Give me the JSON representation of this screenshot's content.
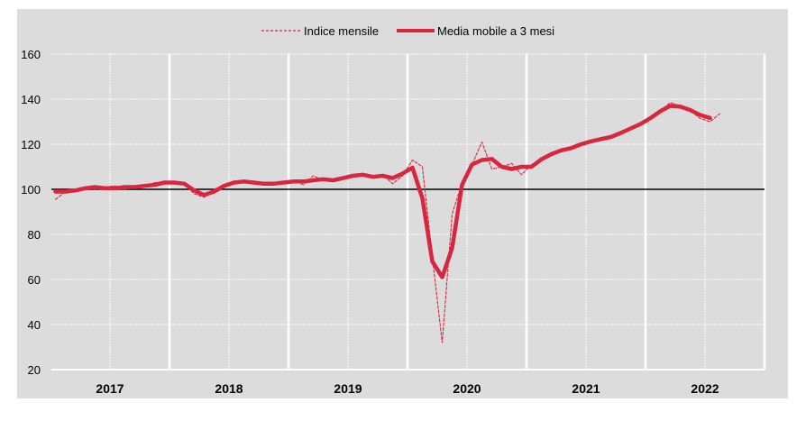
{
  "chart_data": {
    "type": "line",
    "title": "",
    "xlabel": "",
    "ylabel": "",
    "ylim": [
      20,
      160
    ],
    "yticks": [
      20,
      40,
      60,
      80,
      100,
      120,
      140,
      160
    ],
    "reference_line": 100,
    "x_start": "2017-01",
    "frequency": "monthly",
    "year_labels": [
      "2017",
      "2018",
      "2019",
      "2020",
      "2021",
      "2022"
    ],
    "grid": true,
    "legend_position": "top-center",
    "background": "#dcdcdc",
    "series": [
      {
        "name": "Indice mensile",
        "style": "dashed-thin",
        "color": "#d7263d",
        "values": [
          95.5,
          99,
          100,
          101,
          100,
          101,
          101.5,
          100,
          101,
          101,
          103,
          103,
          103.5,
          102,
          98,
          96.5,
          100,
          102,
          103,
          103,
          103,
          102,
          103,
          103.5,
          104,
          102,
          106,
          104,
          103.5,
          105,
          106.5,
          106,
          106,
          106.5,
          102.5,
          106,
          113,
          110,
          70,
          32,
          89,
          103,
          111,
          121,
          109,
          110,
          111.5,
          106.5,
          111,
          113,
          116,
          117,
          118.5,
          120,
          121,
          122,
          123.5,
          125,
          126.5,
          129,
          131,
          135,
          138.5,
          137,
          135,
          131.5,
          130,
          133.6
        ]
      },
      {
        "name": "Media mobile a 3 mesi",
        "style": "solid-thick",
        "color": "#d7263d",
        "values": [
          99,
          99,
          99.5,
          100.5,
          101,
          100.5,
          100.5,
          101,
          101,
          101.5,
          102,
          103,
          103,
          102.5,
          99.5,
          97.5,
          99,
          101.5,
          103,
          103.5,
          103,
          102.5,
          102.5,
          103,
          103.5,
          103.5,
          104,
          104.5,
          104,
          105,
          106,
          106.5,
          105.5,
          106,
          105,
          107,
          109.6,
          96,
          68,
          61,
          74,
          102,
          111,
          113,
          113.5,
          110,
          109,
          110,
          110,
          113.3,
          115.6,
          117.3,
          118.3,
          120,
          121.3,
          122.3,
          123.2,
          125,
          127,
          129,
          131.6,
          134.7,
          137,
          136.7,
          135.2,
          133,
          131.7
        ]
      }
    ]
  }
}
